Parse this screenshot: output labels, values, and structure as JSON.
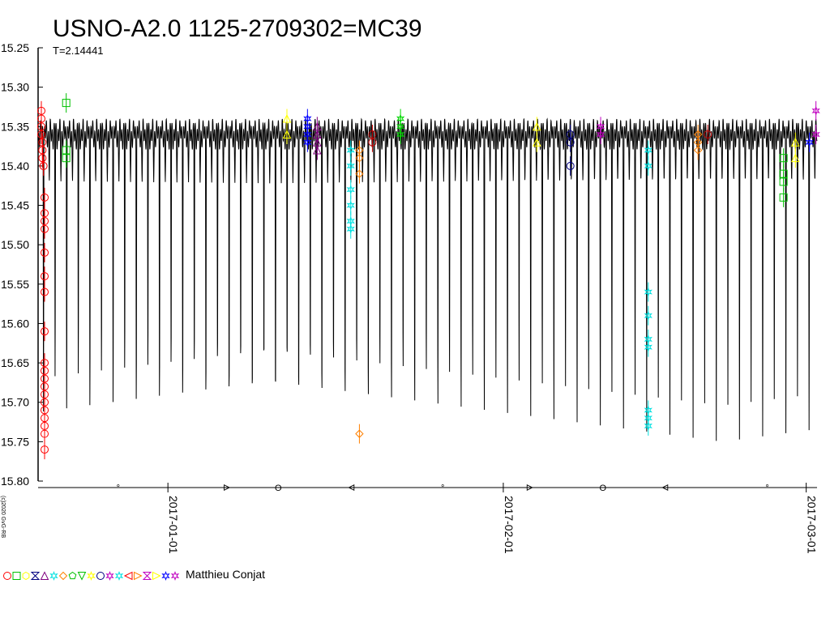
{
  "chart_data": {
    "type": "scatter",
    "title": "USNO-A2.0 1125-2709302=MC39",
    "subtitle": "T=2.14441",
    "copyright": "(c)2020 GvG-RB",
    "observer_label": "Matthieu Conjat",
    "y_axis": {
      "min": 15.25,
      "max": 15.8,
      "inverted": true,
      "ticks": [
        "15.25",
        "15.30",
        "15.35",
        "15.40",
        "15.45",
        "15.50",
        "15.55",
        "15.60",
        "15.65",
        "15.70",
        "15.75",
        "15.80"
      ]
    },
    "x_axis": {
      "start": "2016-12-20",
      "end": "2017-03-02",
      "ticks": [
        "2017-01-01",
        "2017-02-01",
        "2017-03-01"
      ]
    },
    "model_curve": {
      "period_days": 2.14441,
      "max_mag": 15.36,
      "primary_min_mag": 15.73,
      "secondary_min_mag": 15.7
    },
    "series": [
      {
        "color": "#ff0000",
        "marker": "circle",
        "points": [
          [
            "2016-12-20.3",
            15.33
          ],
          [
            "2016-12-20.3",
            15.34
          ],
          [
            "2016-12-20.3",
            15.35
          ],
          [
            "2016-12-20.3",
            15.36
          ],
          [
            "2016-12-20.4",
            15.37
          ],
          [
            "2016-12-20.4",
            15.38
          ],
          [
            "2016-12-20.4",
            15.39
          ],
          [
            "2016-12-20.5",
            15.4
          ],
          [
            "2016-12-20.6",
            15.44
          ],
          [
            "2016-12-20.6",
            15.46
          ],
          [
            "2016-12-20.6",
            15.47
          ],
          [
            "2016-12-20.6",
            15.48
          ],
          [
            "2016-12-20.6",
            15.51
          ],
          [
            "2016-12-20.6",
            15.54
          ],
          [
            "2016-12-20.6",
            15.56
          ],
          [
            "2016-12-20.6",
            15.61
          ],
          [
            "2016-12-20.6",
            15.65
          ],
          [
            "2016-12-20.6",
            15.66
          ],
          [
            "2016-12-20.6",
            15.67
          ],
          [
            "2016-12-20.6",
            15.68
          ],
          [
            "2016-12-20.6",
            15.69
          ],
          [
            "2016-12-20.6",
            15.7
          ],
          [
            "2016-12-20.6",
            15.71
          ],
          [
            "2016-12-20.6",
            15.72
          ],
          [
            "2016-12-20.6",
            15.73
          ],
          [
            "2016-12-20.6",
            15.74
          ],
          [
            "2016-12-20.6",
            15.76
          ]
        ]
      },
      {
        "color": "#00c000",
        "marker": "square",
        "points": [
          [
            "2016-12-22.6",
            15.32
          ],
          [
            "2016-12-22.6",
            15.38
          ],
          [
            "2016-12-22.6",
            15.39
          ],
          [
            "2017-02-26.9",
            15.39
          ],
          [
            "2017-02-26.9",
            15.41
          ],
          [
            "2017-02-26.9",
            15.42
          ],
          [
            "2017-02-26.9",
            15.44
          ]
        ]
      },
      {
        "color": "#00d800",
        "marker": "star",
        "points": [
          [
            "2017-01-22.5",
            15.34
          ],
          [
            "2017-01-22.5",
            15.35
          ],
          [
            "2017-01-22.5",
            15.36
          ]
        ]
      },
      {
        "color": "#ffff00",
        "marker": "triangle",
        "points": [
          [
            "2017-01-12.0",
            15.34
          ],
          [
            "2017-01-12.0",
            15.36
          ],
          [
            "2017-02-04.1",
            15.35
          ],
          [
            "2017-02-04.1",
            15.37
          ],
          [
            "2017-02-28.0",
            15.37
          ],
          [
            "2017-02-28.0",
            15.39
          ]
        ]
      },
      {
        "color": "#0000ff",
        "marker": "star",
        "points": [
          [
            "2017-01-13.9",
            15.34
          ],
          [
            "2017-01-13.9",
            15.35
          ],
          [
            "2017-01-13.9",
            15.36
          ],
          [
            "2017-01-13.9",
            15.37
          ],
          [
            "2017-03-01.3",
            15.37
          ]
        ]
      },
      {
        "color": "#800080",
        "marker": "triangle",
        "points": [
          [
            "2017-01-14.8",
            15.35
          ],
          [
            "2017-01-14.8",
            15.36
          ],
          [
            "2017-01-14.8",
            15.37
          ],
          [
            "2017-01-14.8",
            15.38
          ]
        ]
      },
      {
        "color": "#00e0e0",
        "marker": "star",
        "points": [
          [
            "2017-01-17.9",
            15.38
          ],
          [
            "2017-01-17.9",
            15.4
          ],
          [
            "2017-01-17.9",
            15.43
          ],
          [
            "2017-01-17.9",
            15.45
          ],
          [
            "2017-01-17.9",
            15.47
          ],
          [
            "2017-01-17.9",
            15.48
          ],
          [
            "2017-02-14.4",
            15.38
          ],
          [
            "2017-02-14.4",
            15.4
          ],
          [
            "2017-02-14.4",
            15.56
          ],
          [
            "2017-02-14.4",
            15.59
          ],
          [
            "2017-02-14.4",
            15.62
          ],
          [
            "2017-02-14.4",
            15.63
          ],
          [
            "2017-02-14.4",
            15.71
          ],
          [
            "2017-02-14.4",
            15.72
          ],
          [
            "2017-02-14.4",
            15.73
          ]
        ]
      },
      {
        "color": "#ff8000",
        "marker": "diamond",
        "points": [
          [
            "2017-01-18.7",
            15.38
          ],
          [
            "2017-01-18.7",
            15.39
          ],
          [
            "2017-01-18.7",
            15.41
          ],
          [
            "2017-01-18.7",
            15.74
          ],
          [
            "2017-02-19.0",
            15.36
          ],
          [
            "2017-02-19.0",
            15.37
          ],
          [
            "2017-02-19.0",
            15.38
          ]
        ]
      },
      {
        "color": "#c00000",
        "marker": "circle",
        "points": [
          [
            "2017-01-19.9",
            15.36
          ],
          [
            "2017-01-19.9",
            15.37
          ],
          [
            "2017-02-19.9",
            15.36
          ]
        ]
      },
      {
        "color": "#000080",
        "marker": "circle",
        "points": [
          [
            "2017-02-07.2",
            15.36
          ],
          [
            "2017-02-07.2",
            15.37
          ],
          [
            "2017-02-07.2",
            15.4
          ]
        ]
      },
      {
        "color": "#c000c0",
        "marker": "star",
        "points": [
          [
            "2017-02-10.0",
            15.35
          ],
          [
            "2017-02-10.0",
            15.36
          ],
          [
            "2017-03-01.9",
            15.33
          ],
          [
            "2017-03-01.9",
            15.36
          ]
        ]
      }
    ],
    "epoch_markers": [
      {
        "date": "2016-12-27.4",
        "symbol": "°"
      },
      {
        "date": "2017-01-06.4",
        "symbol": "ᐅ"
      },
      {
        "date": "2017-01-11.2",
        "symbol": "O"
      },
      {
        "date": "2017-01-18.0",
        "symbol": "ᐊ"
      },
      {
        "date": "2017-01-26.4",
        "symbol": "°"
      },
      {
        "date": "2017-02-03.4",
        "symbol": "ᐅ"
      },
      {
        "date": "2017-02-10.2",
        "symbol": "O"
      },
      {
        "date": "2017-02-16.0",
        "symbol": "ᐊ"
      },
      {
        "date": "2017-02-25.4",
        "symbol": "°"
      }
    ],
    "legend_markers": [
      {
        "color": "#ff0000",
        "marker": "circle"
      },
      {
        "color": "#00c000",
        "marker": "square"
      },
      {
        "color": "#ffff00",
        "marker": "hexagon"
      },
      {
        "color": "#000080",
        "marker": "hourglass"
      },
      {
        "color": "#800080",
        "marker": "triangle"
      },
      {
        "color": "#00e0e0",
        "marker": "star"
      },
      {
        "color": "#ff8000",
        "marker": "diamond"
      },
      {
        "color": "#00c000",
        "marker": "pentagon"
      },
      {
        "color": "#00c000",
        "marker": "triangle-down"
      },
      {
        "color": "#ffff00",
        "marker": "star"
      },
      {
        "color": "#000080",
        "marker": "circle"
      },
      {
        "color": "#c000c0",
        "marker": "star"
      },
      {
        "color": "#00e0e0",
        "marker": "star"
      },
      {
        "color": "#ff0000",
        "marker": "triangle-left"
      },
      {
        "color": "#ff8000",
        "marker": "triangle-right"
      },
      {
        "color": "#c000c0",
        "marker": "hourglass"
      },
      {
        "color": "#ffff00",
        "marker": "triangle-right"
      },
      {
        "color": "#0000ff",
        "marker": "star"
      },
      {
        "color": "#c000c0",
        "marker": "star"
      }
    ]
  }
}
